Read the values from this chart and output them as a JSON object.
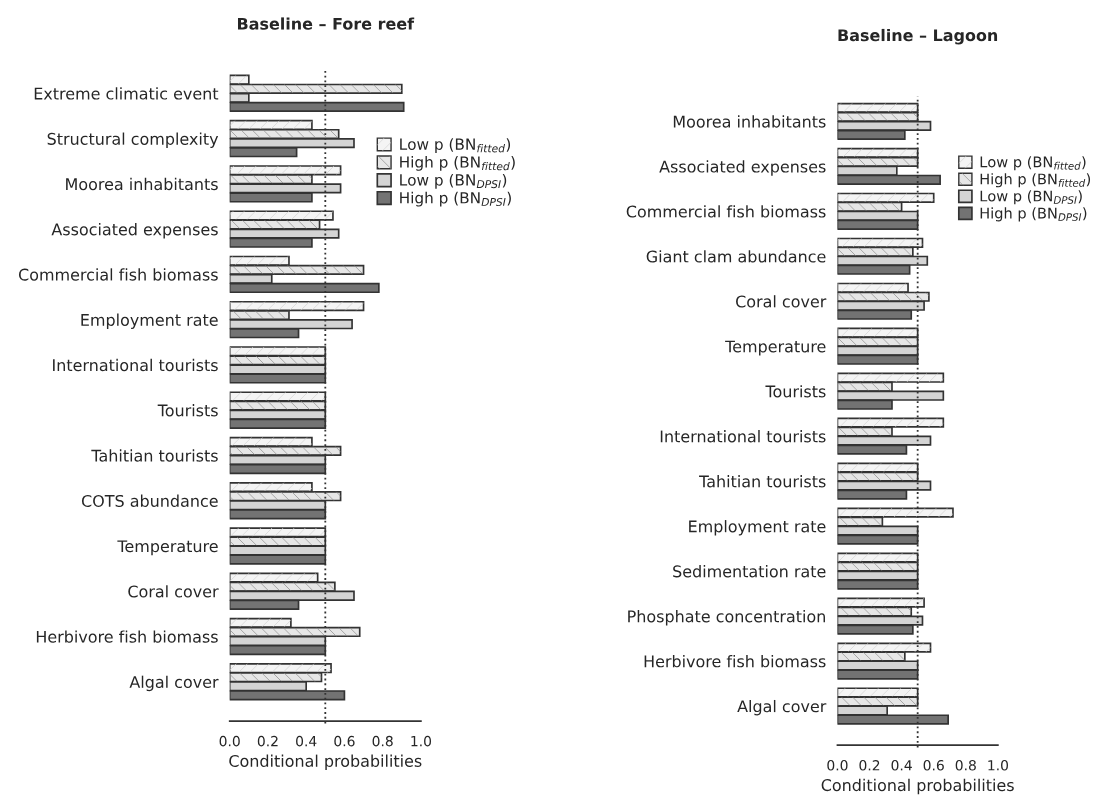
{
  "chart_data": [
    {
      "type": "bar",
      "orientation": "horizontal",
      "title": "Baseline – Fore reef",
      "xlabel": "Conditional probabilities",
      "categories": [
        "Extreme climatic event",
        "Structural complexity",
        "Moorea inhabitants",
        "Associated expenses",
        "Commercial fish biomass",
        "Employment rate",
        "International tourists",
        "Tourists",
        "Tahitian tourists",
        "COTS abundance",
        "Temperature",
        "Coral cover",
        "Herbivore fish biomass",
        "Algal cover"
      ],
      "series": [
        {
          "name": "Low p (BN$_{fitted}$)",
          "color": "#f4f4f4",
          "values": [
            0.1,
            0.43,
            0.58,
            0.54,
            0.31,
            0.7,
            0.5,
            0.5,
            0.43,
            0.43,
            0.5,
            0.46,
            0.32,
            0.53
          ]
        },
        {
          "name": "High p (BN$_{fitted}$)",
          "color": "#e6e6e6",
          "values": [
            0.9,
            0.57,
            0.43,
            0.47,
            0.7,
            0.31,
            0.5,
            0.5,
            0.58,
            0.58,
            0.5,
            0.55,
            0.68,
            0.48
          ]
        },
        {
          "name": "Low p (BN$_{DPSI}$)",
          "color": "#d4d4d4",
          "values": [
            0.1,
            0.65,
            0.58,
            0.57,
            0.22,
            0.64,
            0.5,
            0.5,
            0.5,
            0.5,
            0.5,
            0.65,
            0.5,
            0.4
          ]
        },
        {
          "name": "High p (BN$_{DPSI}$)",
          "color": "#737373",
          "values": [
            0.91,
            0.35,
            0.43,
            0.43,
            0.78,
            0.36,
            0.5,
            0.5,
            0.5,
            0.5,
            0.5,
            0.36,
            0.5,
            0.6
          ]
        }
      ],
      "xlim": [
        0,
        1
      ],
      "xticks": [
        {
          "value": 0,
          "label": "0.0"
        },
        {
          "value": 0.2,
          "label": "0.2"
        },
        {
          "value": 0.4,
          "label": "0.4"
        },
        {
          "value": 0.6,
          "label": "0.6"
        },
        {
          "value": 0.8,
          "label": "0.8"
        },
        {
          "value": 1,
          "label": "1.0"
        }
      ],
      "ref_lines": [
        {
          "axis": "x",
          "value": 0.5,
          "line_style": "dotted",
          "color": "#333333"
        }
      ],
      "legend": "top right",
      "grid": false
    },
    {
      "type": "bar",
      "orientation": "horizontal",
      "title": "Baseline – Lagoon",
      "xlabel": "Conditional probabilities",
      "categories": [
        "Moorea inhabitants",
        "Associated expenses",
        "Commercial fish biomass",
        "Giant clam abundance",
        "Coral cover",
        "Temperature",
        "Tourists",
        "International tourists",
        "Tahitian tourists",
        "Employment rate",
        "Sedimentation rate",
        "Phosphate concentration",
        "Herbivore fish biomass",
        "Algal cover"
      ],
      "series": [
        {
          "name": "Low p (BN$_{fitted}$)",
          "color": "#f4f4f4",
          "values": [
            0.5,
            0.5,
            0.6,
            0.53,
            0.44,
            0.5,
            0.66,
            0.66,
            0.5,
            0.72,
            0.5,
            0.54,
            0.58,
            0.5
          ]
        },
        {
          "name": "High p (BN$_{fitted}$)",
          "color": "#e6e6e6",
          "values": [
            0.5,
            0.5,
            0.4,
            0.47,
            0.57,
            0.5,
            0.34,
            0.34,
            0.5,
            0.28,
            0.5,
            0.46,
            0.42,
            0.5
          ]
        },
        {
          "name": "Low p (BN$_{DPSI}$)",
          "color": "#d4d4d4",
          "values": [
            0.58,
            0.37,
            0.5,
            0.56,
            0.54,
            0.5,
            0.66,
            0.58,
            0.58,
            0.5,
            0.5,
            0.53,
            0.5,
            0.31
          ]
        },
        {
          "name": "High p (BN$_{DPSI}$)",
          "color": "#737373",
          "values": [
            0.42,
            0.64,
            0.5,
            0.45,
            0.46,
            0.5,
            0.34,
            0.43,
            0.43,
            0.5,
            0.5,
            0.47,
            0.5,
            0.69
          ]
        }
      ],
      "xlim": [
        0,
        1
      ],
      "xticks": [
        {
          "value": 0,
          "label": "0.0"
        },
        {
          "value": 0.2,
          "label": "0.2"
        },
        {
          "value": 0.4,
          "label": "0.4"
        },
        {
          "value": 0.6,
          "label": "0.6"
        },
        {
          "value": 0.8,
          "label": "0.8"
        },
        {
          "value": 1,
          "label": "1.0"
        }
      ],
      "ref_lines": [
        {
          "axis": "x",
          "value": 0.5,
          "line_style": "dotted",
          "color": "#333333"
        }
      ],
      "legend": "top right",
      "grid": false
    }
  ]
}
